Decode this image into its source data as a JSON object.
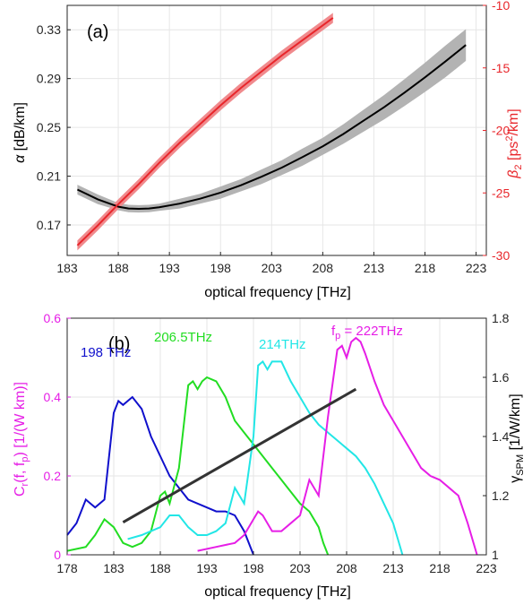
{
  "colors": {
    "alpha": "#000000",
    "alpha_band": "#b3b3b3",
    "beta2": "#e8262b",
    "beta2_band": "#f08a8d",
    "cr_axis": "#e61ee6",
    "trend": "#333333",
    "grid": "#e6e6e6"
  },
  "chart_data": [
    {
      "type": "line",
      "panel_label": "(a)",
      "xlabel": "optical frequency [THz]",
      "xlim": [
        183,
        224
      ],
      "xticks": [
        "183",
        "188",
        "193",
        "198",
        "203",
        "208",
        "213",
        "218",
        "223"
      ],
      "ylabel_left": "α [dB/km]",
      "ylim_left": [
        0.145,
        0.35
      ],
      "yticks_left": [
        "0.17",
        "0.21",
        "0.25",
        "0.29",
        "0.33"
      ],
      "ylabel_right": "β2 [ps2/km]",
      "ylim_right": [
        -30,
        -10
      ],
      "yticks_right": [
        "-30",
        "-25",
        "-20",
        "-15",
        "-10"
      ],
      "grid": true,
      "series": [
        {
          "axis": "left",
          "x": [
            184,
            186,
            188,
            189,
            190,
            191,
            192,
            194,
            196,
            198,
            200,
            202,
            204,
            206,
            208,
            210,
            212,
            214,
            216,
            218,
            220,
            222
          ],
          "y": [
            0.199,
            0.191,
            0.185,
            0.1835,
            0.1832,
            0.1835,
            0.1845,
            0.1875,
            0.1915,
            0.1965,
            0.2025,
            0.2095,
            0.217,
            0.2255,
            0.2345,
            0.2445,
            0.2555,
            0.2665,
            0.2785,
            0.291,
            0.304,
            0.3175
          ],
          "band": [
            0.004,
            0.004,
            0.003,
            0.003,
            0.003,
            0.003,
            0.003,
            0.004,
            0.004,
            0.005,
            0.005,
            0.006,
            0.006,
            0.007,
            0.007,
            0.008,
            0.009,
            0.01,
            0.011,
            0.012,
            0.013,
            0.013
          ]
        },
        {
          "axis": "right",
          "x": [
            184,
            186,
            188,
            190,
            192,
            194,
            196,
            198,
            200,
            202,
            204,
            206,
            208,
            209
          ],
          "y": [
            -29.2,
            -27.6,
            -25.9,
            -24.3,
            -22.6,
            -21.0,
            -19.5,
            -18.0,
            -16.6,
            -15.3,
            -14.0,
            -12.8,
            -11.6,
            -11.0
          ],
          "band": [
            0.4,
            0.4,
            0.4,
            0.4,
            0.4,
            0.4,
            0.4,
            0.4,
            0.4,
            0.4,
            0.4,
            0.4,
            0.4,
            0.4
          ]
        }
      ]
    },
    {
      "type": "line",
      "panel_label": "(b)",
      "xlabel": "optical frequency [THz]",
      "xlim": [
        178,
        223
      ],
      "xticks": [
        "178",
        "183",
        "188",
        "193",
        "198",
        "203",
        "208",
        "213",
        "218",
        "223"
      ],
      "ylabel_left": "Cr(f, fp) [1/(W km)]",
      "ylim_left": [
        0,
        0.6
      ],
      "yticks_left": [
        "0",
        "0.2",
        "0.4",
        "0.6"
      ],
      "ylabel_right": "γSPM [1/W/km]",
      "ylim_right": [
        1,
        1.8
      ],
      "yticks_right": [
        "1",
        "1.2",
        "1.4",
        "1.6",
        "1.8"
      ],
      "grid": true,
      "annotations": [
        {
          "text": "198 THz",
          "color": "#1010cc"
        },
        {
          "text": "206.5THz",
          "color": "#22dd22"
        },
        {
          "text": "214THz",
          "color": "#22e6e6"
        },
        {
          "text": "fp = 222THz",
          "color": "#e61ee6"
        }
      ],
      "series": [
        {
          "name": "198 THz",
          "axis": "left",
          "color": "#1010cc",
          "x": [
            178,
            179,
            180,
            181,
            182,
            183,
            183.5,
            184,
            184.5,
            185,
            186,
            187,
            188,
            189,
            190,
            191,
            192,
            193,
            194,
            195,
            196,
            197,
            198
          ],
          "y": [
            0.05,
            0.08,
            0.14,
            0.12,
            0.14,
            0.36,
            0.39,
            0.38,
            0.39,
            0.4,
            0.37,
            0.3,
            0.25,
            0.2,
            0.17,
            0.14,
            0.13,
            0.12,
            0.11,
            0.11,
            0.1,
            0.06,
            0.0
          ]
        },
        {
          "name": "206.5THz",
          "axis": "left",
          "color": "#22dd22",
          "x": [
            178,
            180,
            181,
            182,
            183,
            184,
            185,
            186,
            187,
            188,
            188.5,
            189,
            190,
            191,
            191.5,
            192,
            192.5,
            193,
            194,
            195,
            196,
            197,
            198,
            199,
            200,
            201,
            202,
            203,
            204,
            205,
            205.5,
            206
          ],
          "y": [
            0.01,
            0.02,
            0.05,
            0.09,
            0.07,
            0.03,
            0.02,
            0.03,
            0.06,
            0.15,
            0.16,
            0.13,
            0.22,
            0.43,
            0.44,
            0.42,
            0.44,
            0.45,
            0.44,
            0.4,
            0.34,
            0.31,
            0.28,
            0.25,
            0.22,
            0.19,
            0.16,
            0.13,
            0.11,
            0.07,
            0.03,
            0.0
          ]
        },
        {
          "name": "214THz",
          "axis": "left",
          "color": "#22e6e6",
          "x": [
            184.5,
            186,
            187,
            188,
            189,
            190,
            191,
            192,
            193,
            194,
            195,
            196,
            197,
            198,
            198.5,
            199,
            199.5,
            200,
            200.5,
            201,
            202,
            203,
            204,
            205,
            206,
            207,
            208,
            209,
            210,
            211,
            212,
            213,
            213.5,
            214
          ],
          "y": [
            0.04,
            0.05,
            0.06,
            0.07,
            0.1,
            0.1,
            0.07,
            0.05,
            0.05,
            0.06,
            0.08,
            0.17,
            0.13,
            0.3,
            0.48,
            0.49,
            0.47,
            0.49,
            0.49,
            0.49,
            0.44,
            0.4,
            0.36,
            0.33,
            0.31,
            0.29,
            0.27,
            0.25,
            0.22,
            0.18,
            0.13,
            0.08,
            0.04,
            0.0
          ]
        },
        {
          "name": "fp = 222THz",
          "axis": "left",
          "color": "#e61ee6",
          "x": [
            192,
            194,
            196,
            197,
            198,
            198.5,
            199,
            200,
            201,
            202,
            203,
            204,
            205,
            206,
            207,
            207.5,
            208,
            208.5,
            209,
            209.5,
            210,
            211,
            212,
            213,
            214,
            215,
            216,
            217,
            218,
            219,
            220,
            221,
            222
          ],
          "y": [
            0.01,
            0.02,
            0.03,
            0.05,
            0.09,
            0.11,
            0.1,
            0.06,
            0.06,
            0.08,
            0.1,
            0.19,
            0.15,
            0.35,
            0.52,
            0.53,
            0.5,
            0.54,
            0.55,
            0.54,
            0.51,
            0.44,
            0.38,
            0.34,
            0.3,
            0.26,
            0.22,
            0.2,
            0.19,
            0.17,
            0.15,
            0.08,
            0.0
          ]
        },
        {
          "name": "",
          "axis": "right",
          "color": "#333333",
          "x": [
            184,
            209
          ],
          "y": [
            1.11,
            1.56
          ]
        }
      ]
    }
  ]
}
